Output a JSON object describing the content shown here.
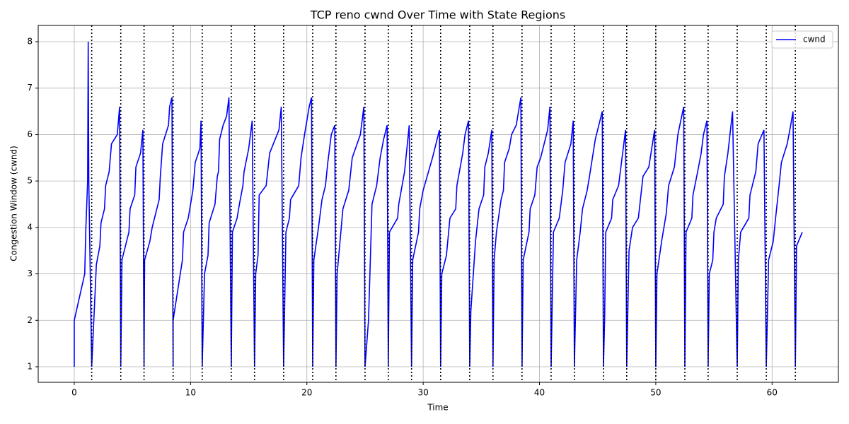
{
  "chart_data": {
    "type": "line",
    "title": "TCP reno cwnd Over Time with State Regions",
    "xlabel": "Time",
    "ylabel": "Congestion Window (cwnd)",
    "x": [
      0,
      0,
      0.9,
      1.0,
      1.15,
      1.2,
      1.25,
      1.5,
      1.9,
      2.2,
      2.3,
      2.6,
      2.7,
      3.0,
      3.2,
      3.7,
      3.9,
      4,
      4.1,
      4.7,
      4.8,
      5.2,
      5.3,
      5.7,
      5.9,
      6,
      6.05,
      6.5,
      6.7,
      7.3,
      7.4,
      7.6,
      8.1,
      8.2,
      8.4,
      8.5,
      8.5,
      9.3,
      9.4,
      9.8,
      10.2,
      10.4,
      10.8,
      10.9,
      11,
      11.2,
      11.5,
      11.6,
      12.1,
      12.3,
      12.4,
      12.5,
      12.8,
      13.1,
      13.3,
      13.5,
      13.6,
      14.0,
      14.2,
      14.5,
      14.6,
      15.0,
      15.3,
      15.5,
      15.6,
      15.8,
      15.9,
      16.5,
      16.8,
      17.6,
      17.8,
      18,
      18.2,
      18.5,
      18.6,
      19.3,
      19.5,
      19.8,
      20.2,
      20.4,
      20.5,
      20.6,
      21.0,
      21.3,
      21.6,
      21.8,
      22.1,
      22.4,
      22.5,
      22.6,
      23.1,
      23.6,
      23.9,
      24.6,
      24.9,
      25,
      25.3,
      25.6,
      26.0,
      26.3,
      26.6,
      26.9,
      27,
      27.1,
      27.8,
      27.9,
      28.4,
      28.8,
      29,
      29.1,
      29.6,
      29.7,
      30.0,
      30.8,
      31.1,
      31.4,
      31.5,
      31.6,
      32.0,
      32.3,
      32.8,
      32.9,
      33.4,
      33.6,
      33.9,
      34,
      34.1,
      34.5,
      34.8,
      35.2,
      35.3,
      35.6,
      35.9,
      36,
      36.1,
      36.3,
      36.7,
      36.9,
      37.0,
      37.4,
      37.6,
      38.0,
      38.2,
      38.4,
      38.5,
      38.6,
      39.1,
      39.2,
      39.6,
      39.8,
      40.1,
      40.3,
      40.7,
      40.9,
      41,
      41.2,
      41.7,
      42.0,
      42.2,
      42.7,
      42.9,
      43,
      43.2,
      43.5,
      43.7,
      44.1,
      44.3,
      44.8,
      45.2,
      45.4,
      45.5,
      45.6,
      45.7,
      46.2,
      46.3,
      46.8,
      47.0,
      47.3,
      47.4,
      47.5,
      47.7,
      48.0,
      48.5,
      48.9,
      49.4,
      49.9,
      50,
      50.1,
      50.5,
      50.9,
      51.1,
      51.6,
      51.9,
      52.4,
      52.5,
      52.6,
      53.1,
      53.2,
      53.6,
      53.9,
      54.1,
      54.4,
      54.5,
      54.6,
      54.9,
      55.0,
      55.2,
      55.8,
      55.9,
      56.2,
      56.6,
      57,
      57.1,
      57.3,
      58.0,
      58.1,
      58.6,
      58.8,
      59.3,
      59.5,
      59.7,
      60.1,
      60.3,
      60.6,
      60.8,
      61.3,
      61.6,
      61.8,
      62,
      62.1,
      62.6
    ],
    "series": [
      {
        "name": "cwnd",
        "color": "#0000ff",
        "values": [
          1,
          2,
          3,
          4,
          5,
          8,
          5,
          1,
          3.2,
          3.6,
          4.1,
          4.4,
          4.9,
          5.2,
          5.8,
          6.0,
          6.6,
          1,
          3.3,
          3.9,
          4.4,
          4.7,
          5.3,
          5.6,
          6.1,
          1,
          3.3,
          3.7,
          4.0,
          4.6,
          5.1,
          5.8,
          6.2,
          6.6,
          6.8,
          1,
          2,
          3.3,
          3.9,
          4.2,
          4.8,
          5.4,
          5.7,
          6.3,
          1,
          3,
          3.4,
          4.1,
          4.5,
          5.1,
          5.2,
          5.9,
          6.2,
          6.4,
          6.8,
          1,
          3.9,
          4.2,
          4.5,
          4.9,
          5.2,
          5.7,
          6.3,
          1,
          3.0,
          3.4,
          4.7,
          4.9,
          5.6,
          6.1,
          6.6,
          1,
          3.9,
          4.2,
          4.6,
          4.9,
          5.5,
          6.0,
          6.6,
          6.8,
          1,
          3.3,
          4.0,
          4.6,
          4.9,
          5.4,
          6.0,
          6.2,
          1,
          3.0,
          4.4,
          4.8,
          5.5,
          6.0,
          6.6,
          1,
          2,
          4.5,
          4.9,
          5.5,
          5.9,
          6.2,
          1,
          3.9,
          4.2,
          4.5,
          5.2,
          6.2,
          1,
          3.3,
          3.9,
          4.4,
          4.8,
          5.5,
          5.8,
          6.1,
          1,
          3.0,
          3.4,
          4.2,
          4.4,
          4.9,
          5.6,
          6.0,
          6.3,
          1,
          2.2,
          3.7,
          4.4,
          4.7,
          5.3,
          5.6,
          6.1,
          1,
          3.3,
          3.9,
          4.6,
          4.8,
          5.4,
          5.7,
          6.0,
          6.2,
          6.5,
          6.8,
          1,
          3.3,
          3.9,
          4.4,
          4.7,
          5.3,
          5.5,
          5.7,
          6.1,
          6.6,
          1,
          3.9,
          4.2,
          4.8,
          5.4,
          5.8,
          6.3,
          1,
          3.3,
          3.9,
          4.4,
          4.8,
          5.1,
          5.9,
          6.3,
          6.5,
          1,
          2,
          3.9,
          4.2,
          4.6,
          4.9,
          5.3,
          5.9,
          6.1,
          1,
          3.5,
          4.0,
          4.2,
          5.1,
          5.3,
          6.1,
          1,
          3.0,
          3.7,
          4.3,
          4.9,
          5.3,
          6.0,
          6.6,
          1,
          3.9,
          4.2,
          4.7,
          5.2,
          5.6,
          6.0,
          6.3,
          1,
          3.0,
          3.3,
          3.9,
          4.2,
          4.5,
          5.1,
          5.6,
          6.5,
          1,
          3.3,
          3.9,
          4.2,
          4.7,
          5.2,
          5.8,
          6.1,
          1,
          3.3,
          3.7,
          4.2,
          4.9,
          5.4,
          5.8,
          6.2,
          6.5,
          1,
          3.6,
          3.9
        ]
      }
    ],
    "state_lines": [
      1.5,
      4,
      6,
      8.5,
      11,
      13.5,
      15.5,
      18,
      20.5,
      22.5,
      25,
      27,
      29,
      31.5,
      34,
      36,
      38.5,
      41,
      43,
      45.5,
      47.5,
      50,
      52.5,
      54.5,
      57,
      59.5,
      62
    ],
    "xlim": [
      -3.1,
      65.7
    ],
    "ylim": [
      0.665,
      8.35
    ],
    "xticks": [
      0,
      10,
      20,
      30,
      40,
      50,
      60
    ],
    "yticks": [
      1,
      2,
      3,
      4,
      5,
      6,
      7,
      8
    ],
    "grid": true,
    "legend": "upper-right"
  }
}
